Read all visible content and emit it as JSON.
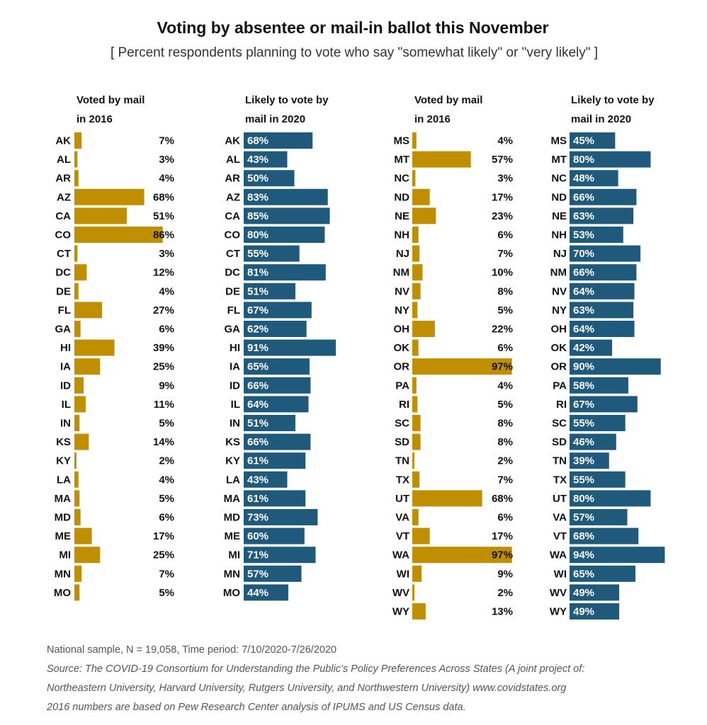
{
  "title": "Voting by absentee or mail-in ballot this November",
  "subtitle": "[ Percent respondents planning to vote who say \"somewhat likely\" or \"very likely\" ]",
  "headers": {
    "voted_2016": "Voted by mail\nin 2016",
    "likely_2020": "Likely to vote by\nmail in 2020"
  },
  "colors": {
    "gold": "#c08f00",
    "blue": "#1f5a7c"
  },
  "chart_data": {
    "type": "bar",
    "series": [
      {
        "name": "Voted by mail in 2016",
        "color": "#c08f00"
      },
      {
        "name": "Likely to vote by mail in 2020",
        "color": "#1f5a7c"
      }
    ],
    "panels": [
      {
        "states": [
          "AK",
          "AL",
          "AR",
          "AZ",
          "CA",
          "CO",
          "CT",
          "DC",
          "DE",
          "FL",
          "GA",
          "HI",
          "IA",
          "ID",
          "IL",
          "IN",
          "KS",
          "KY",
          "LA",
          "MA",
          "MD",
          "ME",
          "MI",
          "MN",
          "MO"
        ],
        "voted_2016": [
          7,
          3,
          4,
          68,
          51,
          86,
          3,
          12,
          4,
          27,
          6,
          39,
          25,
          9,
          11,
          5,
          14,
          2,
          4,
          5,
          6,
          17,
          25,
          7,
          5
        ],
        "likely_2020": [
          68,
          43,
          50,
          83,
          85,
          80,
          55,
          81,
          51,
          67,
          62,
          91,
          65,
          66,
          64,
          51,
          66,
          61,
          43,
          61,
          73,
          60,
          71,
          57,
          44
        ]
      },
      {
        "states": [
          "MS",
          "MT",
          "NC",
          "ND",
          "NE",
          "NH",
          "NJ",
          "NM",
          "NV",
          "NY",
          "OH",
          "OK",
          "OR",
          "PA",
          "RI",
          "SC",
          "SD",
          "TN",
          "TX",
          "UT",
          "VA",
          "VT",
          "WA",
          "WI",
          "WV",
          "WY"
        ],
        "voted_2016": [
          4,
          57,
          3,
          17,
          23,
          6,
          7,
          10,
          8,
          5,
          22,
          6,
          97,
          4,
          5,
          8,
          8,
          2,
          7,
          68,
          6,
          17,
          97,
          9,
          2,
          13
        ],
        "likely_2020": [
          45,
          80,
          48,
          66,
          63,
          53,
          70,
          66,
          64,
          63,
          64,
          42,
          90,
          58,
          67,
          55,
          46,
          39,
          55,
          80,
          57,
          68,
          94,
          65,
          49,
          49
        ]
      }
    ],
    "value_suffix": "%"
  },
  "notes": {
    "sample": "National sample, N = 19,058, Time period: 7/10/2020-7/26/2020",
    "source": "Source: The COVID-19 Consortium for Understanding the Public's Policy Preferences Across States (A joint project of:",
    "source_cont": "Northeastern University, Harvard University, Rutgers University, and Northwestern University) www.covidstates.org",
    "census": "2016 numbers are based on Pew Research Center analysis of IPUMS and US Census data."
  }
}
